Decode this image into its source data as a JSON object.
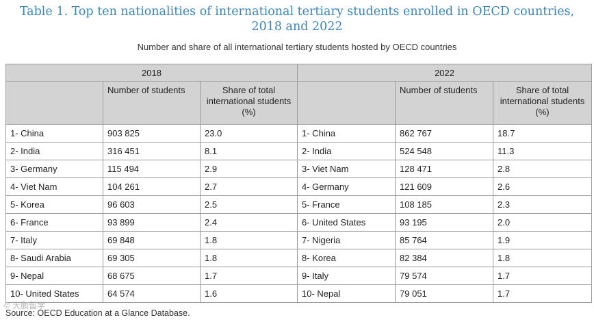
{
  "title_line1": "Table 1. Top ten nationalities of international tertiary students enrolled in OECD countries,",
  "title_line2": "2018 and 2022",
  "subtitle": "Number and share of all international tertiary students hosted by OECD countries",
  "years": [
    "2018",
    "2022"
  ],
  "col_number": "Number of students",
  "col_share": "Share of total international students (%)",
  "rows": [
    {
      "c2018": "1- China",
      "n2018": "903 825",
      "s2018": "23.0",
      "c2022": "1- China",
      "n2022": "862 767",
      "s2022": "18.7"
    },
    {
      "c2018": "2- India",
      "n2018": "316 451",
      "s2018": "8.1",
      "c2022": "2- India",
      "n2022": "524 548",
      "s2022": "11.3"
    },
    {
      "c2018": "3- Germany",
      "n2018": "115 494",
      "s2018": "2.9",
      "c2022": "3- Viet Nam",
      "n2022": "128 471",
      "s2022": "2.8"
    },
    {
      "c2018": "4- Viet Nam",
      "n2018": "104 261",
      "s2018": "2.7",
      "c2022": "4- Germany",
      "n2022": "121 609",
      "s2022": "2.6"
    },
    {
      "c2018": "5- Korea",
      "n2018": "96 603",
      "s2018": "2.5",
      "c2022": "5- France",
      "n2022": "108 185",
      "s2022": "2.3"
    },
    {
      "c2018": "6- France",
      "n2018": "93 899",
      "s2018": "2.4",
      "c2022": "6- United States",
      "n2022": "93 195",
      "s2022": "2.0"
    },
    {
      "c2018": "7- Italy",
      "n2018": "69 848",
      "s2018": "1.8",
      "c2022": "7- Nigeria",
      "n2022": "85 764",
      "s2022": "1.9"
    },
    {
      "c2018": "8- Saudi Arabia",
      "n2018": "69 305",
      "s2018": "1.8",
      "c2022": "8- Korea",
      "n2022": "82 384",
      "s2022": "1.8"
    },
    {
      "c2018": "9- Nepal",
      "n2018": "68 675",
      "s2018": "1.7",
      "c2022": "9- Italy",
      "n2022": "79 574",
      "s2022": "1.7"
    },
    {
      "c2018": "10- United States",
      "n2018": "64 574",
      "s2018": "1.6",
      "c2022": "10- Nepal",
      "n2022": "79 051",
      "s2022": "1.7"
    }
  ],
  "source": "Source: OECD Education at a Glance Database.",
  "watermark": "© 大鹏留学"
}
